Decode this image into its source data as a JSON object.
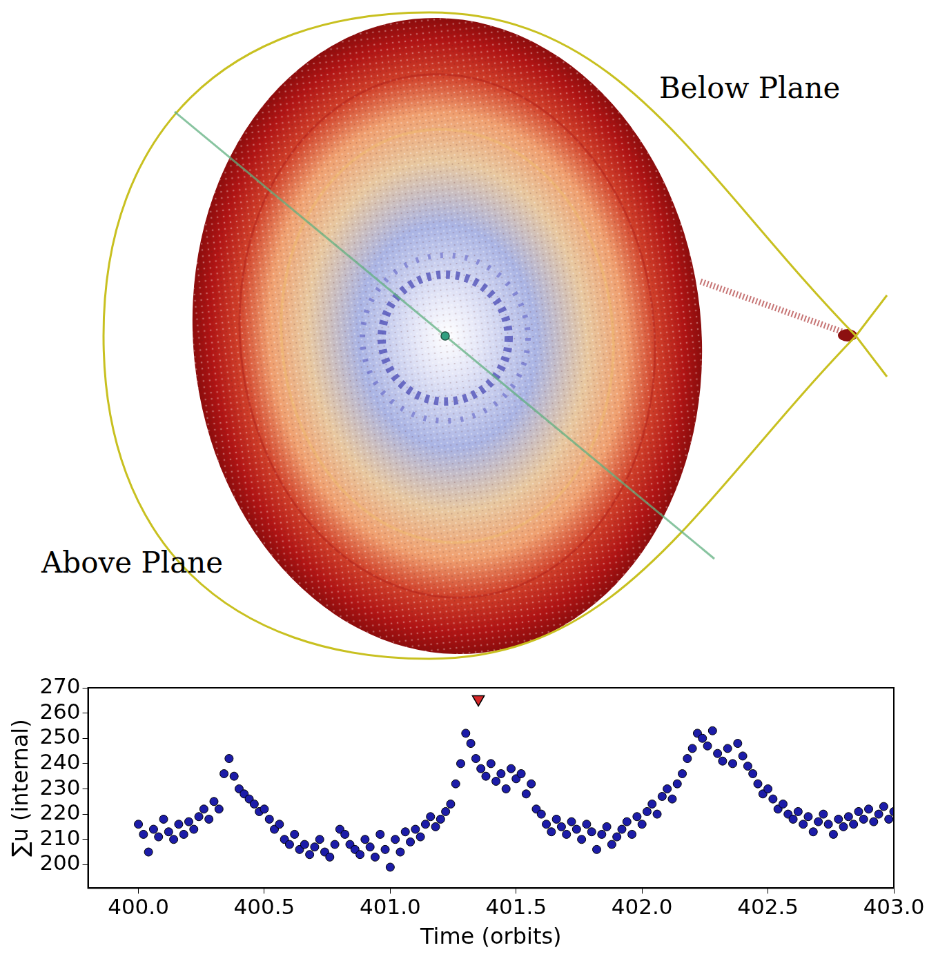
{
  "figure": {
    "labels": [
      "Below Plane",
      "Above Plane"
    ]
  },
  "chart_data": {
    "type": "scatter",
    "x_label": "Time (orbits)",
    "y_label": "∑u (internal)",
    "xlim": [
      399.8,
      403
    ],
    "ylim": [
      190.7,
      270
    ],
    "xticks": [
      {
        "value": 400,
        "label": "400.0"
      },
      {
        "value": 400.5,
        "label": "400.5"
      },
      {
        "value": 401,
        "label": "401.0"
      },
      {
        "value": 401.5,
        "label": "401.5"
      },
      {
        "value": 402,
        "label": "402.0"
      },
      {
        "value": 402.5,
        "label": "402.5"
      },
      {
        "value": 403,
        "label": "403.0"
      }
    ],
    "yticks": [
      200,
      210,
      220,
      230,
      240,
      250,
      260,
      270
    ],
    "grid": false,
    "color": "#1c1ca8",
    "marker": "circle",
    "x": [
      400.0,
      400.02,
      400.04,
      400.06,
      400.08,
      400.1,
      400.12,
      400.14,
      400.16,
      400.18,
      400.2,
      400.22,
      400.24,
      400.26,
      400.28,
      400.3,
      400.32,
      400.34,
      400.36,
      400.38,
      400.4,
      400.42,
      400.44,
      400.46,
      400.48,
      400.5,
      400.52,
      400.54,
      400.56,
      400.58,
      400.6,
      400.62,
      400.64,
      400.66,
      400.68,
      400.7,
      400.72,
      400.74,
      400.76,
      400.78,
      400.8,
      400.82,
      400.84,
      400.86,
      400.88,
      400.9,
      400.92,
      400.94,
      400.96,
      400.98,
      401.0,
      401.02,
      401.04,
      401.06,
      401.08,
      401.1,
      401.12,
      401.14,
      401.16,
      401.18,
      401.2,
      401.22,
      401.24,
      401.26,
      401.28,
      401.3,
      401.32,
      401.34,
      401.36,
      401.38,
      401.4,
      401.42,
      401.44,
      401.46,
      401.48,
      401.5,
      401.52,
      401.54,
      401.56,
      401.58,
      401.6,
      401.62,
      401.64,
      401.66,
      401.68,
      401.7,
      401.72,
      401.74,
      401.76,
      401.78,
      401.8,
      401.82,
      401.84,
      401.86,
      401.88,
      401.9,
      401.92,
      401.94,
      401.96,
      401.98,
      402.0,
      402.02,
      402.04,
      402.06,
      402.08,
      402.1,
      402.12,
      402.14,
      402.16,
      402.18,
      402.2,
      402.22,
      402.24,
      402.26,
      402.28,
      402.3,
      402.32,
      402.34,
      402.36,
      402.38,
      402.4,
      402.42,
      402.44,
      402.46,
      402.48,
      402.5,
      402.52,
      402.54,
      402.56,
      402.58,
      402.6,
      402.62,
      402.64,
      402.66,
      402.68,
      402.7,
      402.72,
      402.74,
      402.76,
      402.78,
      402.8,
      402.82,
      402.84,
      402.86,
      402.88,
      402.9,
      402.92,
      402.94,
      402.96,
      402.98,
      403.0
    ],
    "values": [
      216,
      212,
      205,
      214,
      211,
      218,
      213,
      210,
      216,
      212,
      217,
      214,
      219,
      222,
      218,
      225,
      222,
      236,
      242,
      235,
      230,
      228,
      226,
      224,
      221,
      222,
      218,
      214,
      216,
      210,
      208,
      212,
      206,
      208,
      204,
      207,
      210,
      205,
      203,
      208,
      214,
      212,
      208,
      206,
      204,
      210,
      207,
      203,
      212,
      206,
      199,
      210,
      205,
      213,
      209,
      214,
      211,
      216,
      219,
      215,
      218,
      221,
      224,
      232,
      240,
      252,
      248,
      242,
      238,
      235,
      240,
      233,
      236,
      230,
      238,
      234,
      236,
      228,
      232,
      222,
      220,
      216,
      213,
      218,
      215,
      212,
      217,
      214,
      210,
      216,
      213,
      206,
      212,
      215,
      208,
      211,
      214,
      217,
      212,
      219,
      216,
      221,
      224,
      220,
      227,
      230,
      226,
      232,
      236,
      242,
      246,
      252,
      250,
      247,
      253,
      244,
      241,
      246,
      240,
      248,
      243,
      239,
      236,
      232,
      228,
      230,
      226,
      222,
      224,
      220,
      218,
      221,
      216,
      219,
      213,
      217,
      220,
      216,
      212,
      218,
      215,
      219,
      216,
      221,
      218,
      222,
      217,
      220,
      223,
      218,
      221
    ],
    "annotations": [
      {
        "x": 401.35,
        "y": 265.5,
        "marker": "triangle_down",
        "color": "#d62728"
      }
    ]
  }
}
